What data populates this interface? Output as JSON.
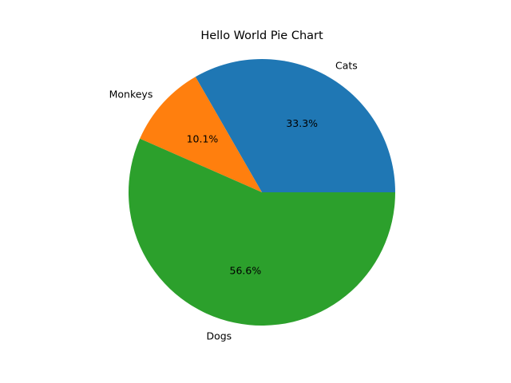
{
  "chart_data": {
    "type": "pie",
    "title": "Hello World Pie Chart",
    "slices": [
      {
        "label": "Cats",
        "value": 33.3,
        "pct_label": "33.3%",
        "color": "#1f77b4"
      },
      {
        "label": "Monkeys",
        "value": 10.1,
        "pct_label": "10.1%",
        "color": "#ff7f0e"
      },
      {
        "label": "Dogs",
        "value": 56.6,
        "pct_label": "56.6%",
        "color": "#2ca02c"
      }
    ],
    "start_angle_deg": 0,
    "direction": "counterclockwise",
    "legend": "none"
  }
}
